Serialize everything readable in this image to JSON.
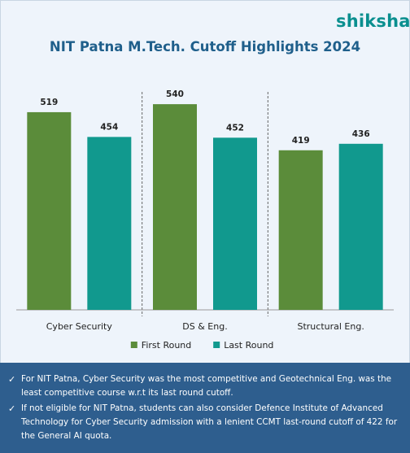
{
  "brand": {
    "name": "shiksha",
    "logo_icon": "graduation-cap-person-icon",
    "color": "#0a8f8f"
  },
  "title": "NIT Patna M.Tech. Cutoff Highlights 2024",
  "chart_data": {
    "type": "bar",
    "categories": [
      "Cyber Security",
      "DS & Eng.",
      "Structural Eng."
    ],
    "series": [
      {
        "name": "First Round",
        "values": [
          519,
          540,
          419
        ],
        "color": "#5b8c3a"
      },
      {
        "name": "Last Round",
        "values": [
          454,
          452,
          436
        ],
        "color": "#11998e"
      }
    ],
    "ylim": [
      0,
      600
    ],
    "data_labels": true,
    "grid": false,
    "legend_position": "bottom",
    "category_separators": "dashed"
  },
  "notes": [
    "For NIT Patna, Cyber Security was the most competitive and Geotechnical Eng. was the least competitive course w.r.t its last round cutoff.",
    "If not eligible for NIT Patna, students can also consider Defence Institute of Advanced Technology for Cyber Security admission with a lenient CCMT last-round cutoff of 422 for the General AI quota."
  ],
  "note_icon": "checkmark-icon",
  "colors": {
    "background": "#eef4fb",
    "footer": "#2e5e8e",
    "title": "#1f5f8b"
  }
}
